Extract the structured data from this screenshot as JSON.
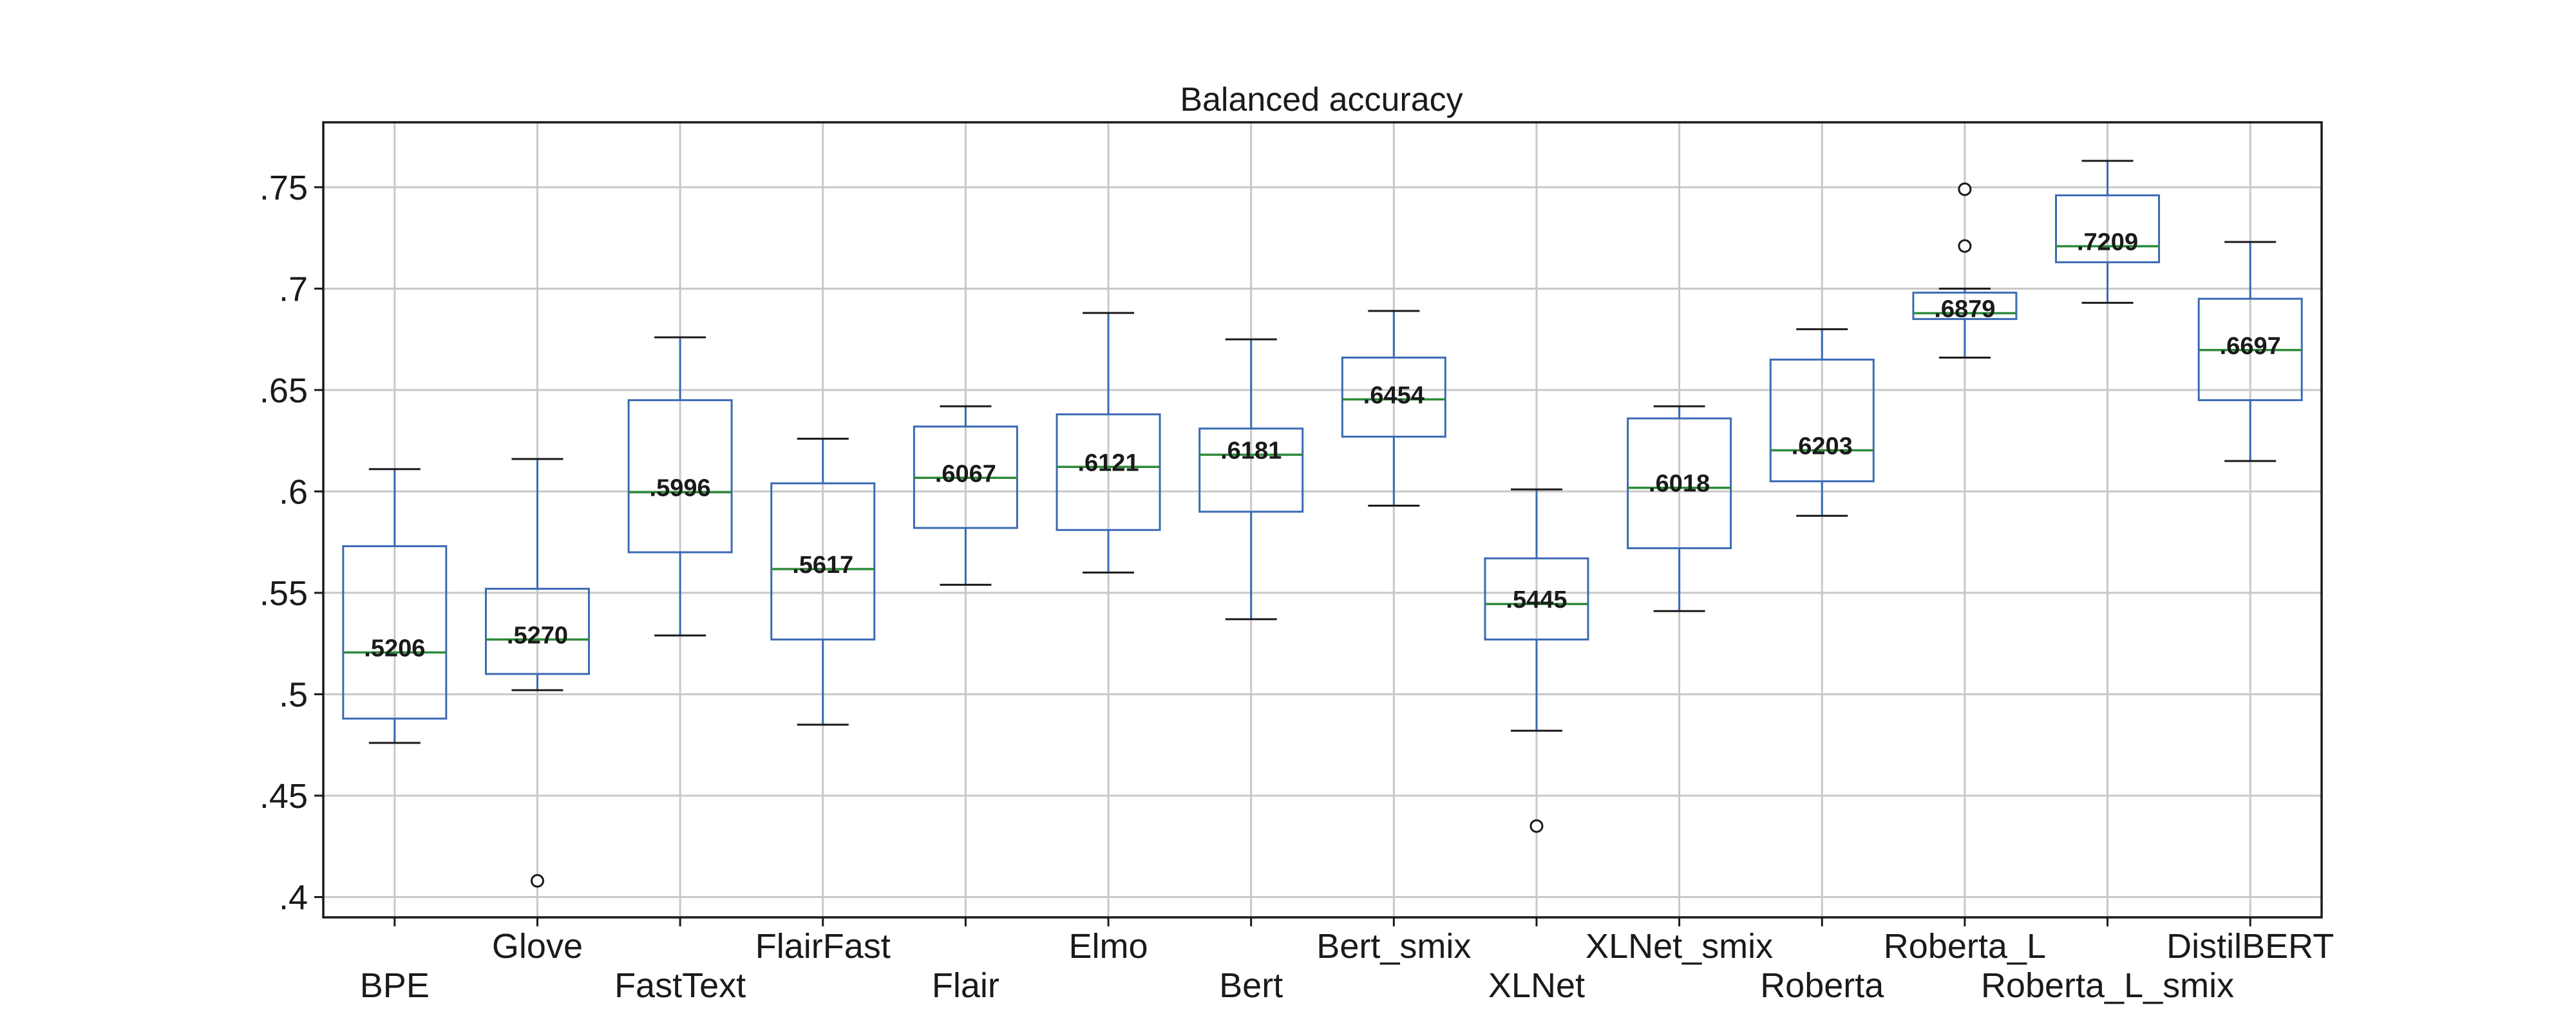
{
  "chart_data": {
    "type": "box",
    "title": "Balanced accuracy",
    "xlabel": "",
    "ylabel": "",
    "ylim": [
      0.39,
      0.782
    ],
    "yticks": [
      0.4,
      0.45,
      0.5,
      0.55,
      0.6,
      0.65,
      0.7,
      0.75
    ],
    "ytick_labels": [
      ".4",
      ".45",
      ".5",
      ".55",
      ".6",
      ".65",
      ".7",
      ".75"
    ],
    "grid": true,
    "categories": [
      "BPE",
      "Glove",
      "FastText",
      "FlairFast",
      "Flair",
      "Elmo",
      "Bert",
      "Bert_smix",
      "XLNet",
      "XLNet_smix",
      "Roberta",
      "Roberta_L",
      "Roberta_L_smix",
      "DistilBERT"
    ],
    "boxes": [
      {
        "whislo": 0.476,
        "q1": 0.488,
        "med": 0.5206,
        "q3": 0.573,
        "whishi": 0.611,
        "fliers": [],
        "label": ".5206"
      },
      {
        "whislo": 0.502,
        "q1": 0.51,
        "med": 0.527,
        "q3": 0.552,
        "whishi": 0.616,
        "fliers": [
          0.408
        ],
        "label": ".5270"
      },
      {
        "whislo": 0.529,
        "q1": 0.57,
        "med": 0.5996,
        "q3": 0.645,
        "whishi": 0.676,
        "fliers": [],
        "label": ".5996"
      },
      {
        "whislo": 0.485,
        "q1": 0.527,
        "med": 0.5617,
        "q3": 0.604,
        "whishi": 0.626,
        "fliers": [],
        "label": ".5617"
      },
      {
        "whislo": 0.554,
        "q1": 0.582,
        "med": 0.6067,
        "q3": 0.632,
        "whishi": 0.642,
        "fliers": [],
        "label": ".6067"
      },
      {
        "whislo": 0.56,
        "q1": 0.581,
        "med": 0.6121,
        "q3": 0.638,
        "whishi": 0.688,
        "fliers": [],
        "label": ".6121"
      },
      {
        "whislo": 0.537,
        "q1": 0.59,
        "med": 0.6181,
        "q3": 0.631,
        "whishi": 0.675,
        "fliers": [],
        "label": ".6181"
      },
      {
        "whislo": 0.593,
        "q1": 0.627,
        "med": 0.6454,
        "q3": 0.666,
        "whishi": 0.689,
        "fliers": [],
        "label": ".6454"
      },
      {
        "whislo": 0.482,
        "q1": 0.527,
        "med": 0.5445,
        "q3": 0.567,
        "whishi": 0.601,
        "fliers": [
          0.435
        ],
        "label": ".5445"
      },
      {
        "whislo": 0.541,
        "q1": 0.572,
        "med": 0.6018,
        "q3": 0.636,
        "whishi": 0.642,
        "fliers": [],
        "label": ".6018"
      },
      {
        "whislo": 0.588,
        "q1": 0.605,
        "med": 0.6203,
        "q3": 0.665,
        "whishi": 0.68,
        "fliers": [],
        "label": ".6203"
      },
      {
        "whislo": 0.666,
        "q1": 0.685,
        "med": 0.6879,
        "q3": 0.698,
        "whishi": 0.7,
        "fliers": [
          0.721,
          0.749
        ],
        "label": ".6879"
      },
      {
        "whislo": 0.693,
        "q1": 0.713,
        "med": 0.7209,
        "q3": 0.746,
        "whishi": 0.763,
        "fliers": [],
        "label": ".7209"
      },
      {
        "whislo": 0.615,
        "q1": 0.645,
        "med": 0.6697,
        "q3": 0.695,
        "whishi": 0.723,
        "fliers": [],
        "label": ".6697"
      }
    ],
    "colors": {
      "box": "#3a6ab4",
      "median": "#2e8b3a",
      "cap": "#1a1a1a",
      "grid": "#c8c8c8"
    }
  }
}
